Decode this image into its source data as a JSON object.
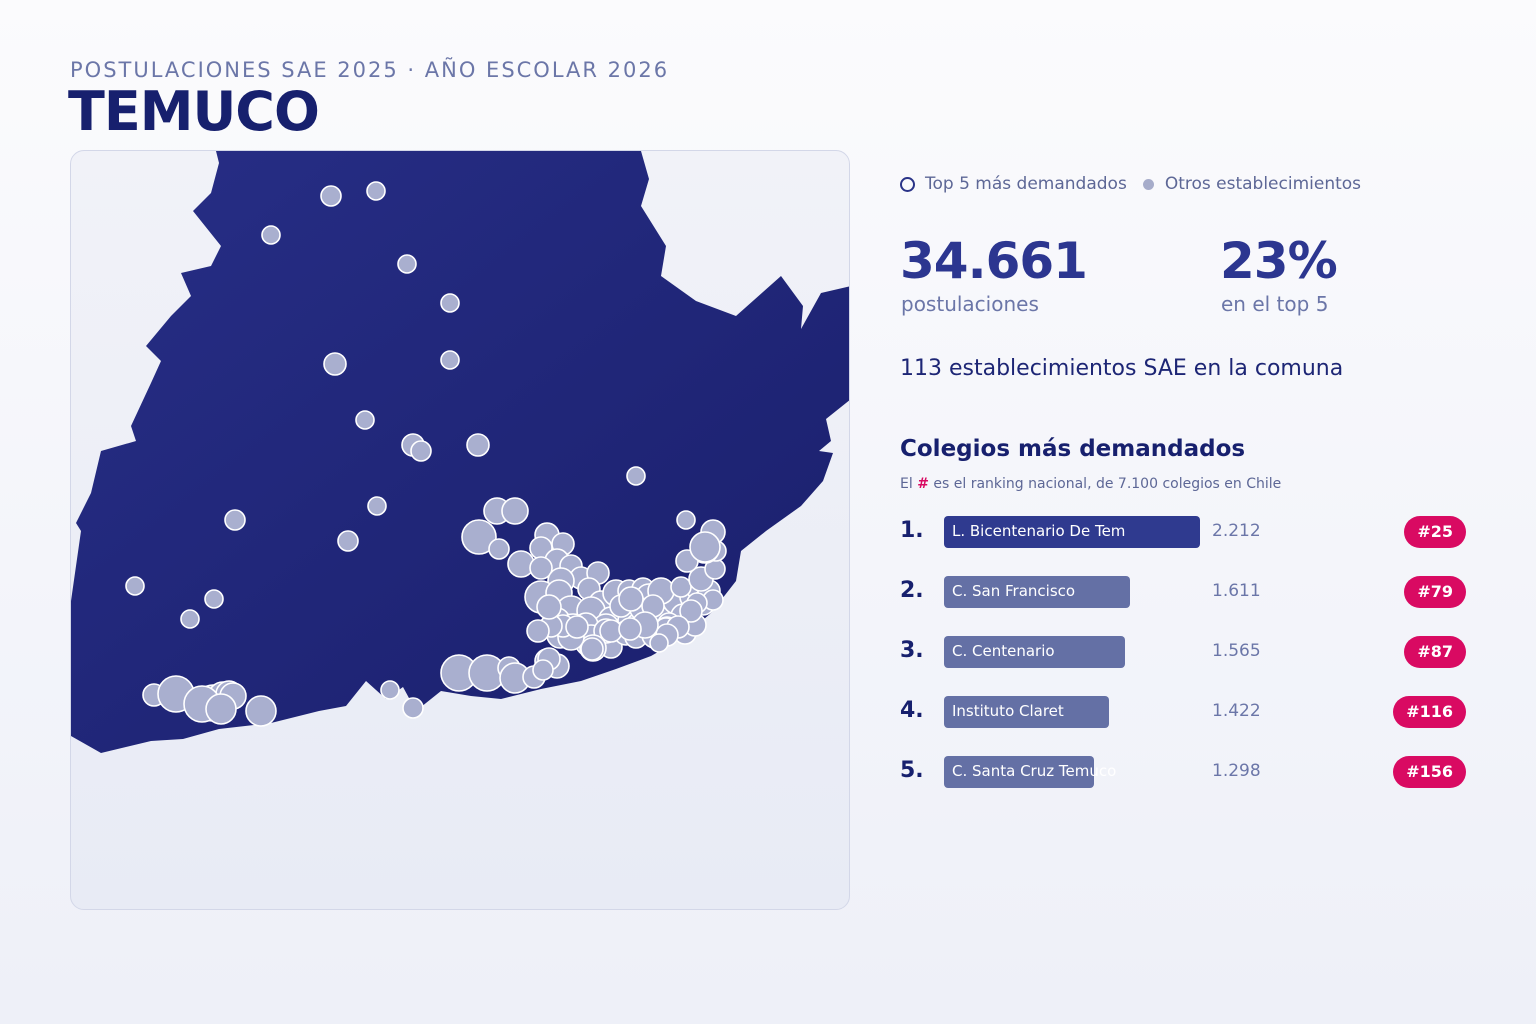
{
  "header": {
    "supertitle": "POSTULACIONES SAE 2025 · AÑO ESCOLAR 2026",
    "title": "TEMUCO"
  },
  "legend": {
    "top5_label": "Top 5 más demandados",
    "others_label": "Otros establecimientos"
  },
  "stats": {
    "applications_value": "34.661",
    "applications_label": "postulaciones",
    "top5_share_value": "23%",
    "top5_share_label": "en el top 5"
  },
  "schools_count_text": "113 establecimientos SAE en la comuna",
  "ranking": {
    "title": "Colegios más demandados",
    "subtitle_prefix": "El",
    "subtitle_hash": "#",
    "subtitle_suffix": "es el ranking nacional, de 7.100 colegios en Chile",
    "items": [
      {
        "rank": "1.",
        "name": "L. Bicentenario De Tem",
        "value_text": "2.212",
        "value": 2212,
        "badge": "#25"
      },
      {
        "rank": "2.",
        "name": "C. San Francisco",
        "value_text": "1.611",
        "value": 1611,
        "badge": "#79"
      },
      {
        "rank": "3.",
        "name": "C. Centenario",
        "value_text": "1.565",
        "value": 1565,
        "badge": "#87"
      },
      {
        "rank": "4.",
        "name": "Instituto Claret",
        "value_text": "1.422",
        "value": 1422,
        "badge": "#116"
      },
      {
        "rank": "5.",
        "name": "C. Santa Cruz Temuco",
        "value_text": "1.298",
        "value": 1298,
        "badge": "#156"
      }
    ]
  },
  "colors": {
    "territory": "#1f2478",
    "marker_fill": "#a9afcf",
    "marker_stroke": "#ffffff",
    "bar_top": "#2f3a8f",
    "bar_other": "#6470a5",
    "badge": "#d90a62"
  }
}
